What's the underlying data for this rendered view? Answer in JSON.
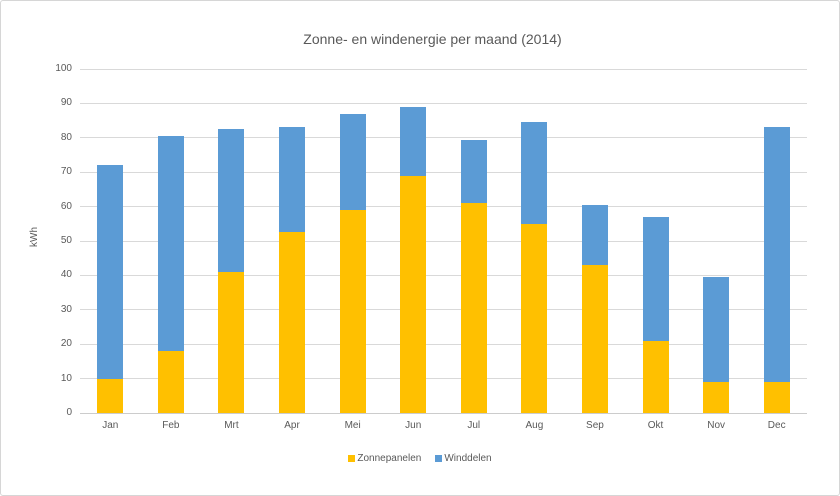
{
  "chart_data": {
    "type": "bar",
    "stacked": true,
    "title": "Zonne- en windenergie per maand (2014)",
    "xlabel": "",
    "ylabel": "kWh",
    "categories": [
      "Jan",
      "Feb",
      "Mrt",
      "Apr",
      "Mei",
      "Jun",
      "Jul",
      "Aug",
      "Sep",
      "Okt",
      "Nov",
      "Dec"
    ],
    "series": [
      {
        "name": "Zonnepanelen",
        "color": "#FFC000",
        "values": [
          10,
          18,
          41,
          52.5,
          59,
          69,
          61,
          55,
          43,
          21,
          9,
          9
        ]
      },
      {
        "name": "Winddelen",
        "color": "#5B9BD5",
        "values": [
          62,
          62.5,
          41.5,
          30.5,
          28,
          20,
          18.5,
          29.5,
          17.5,
          36,
          30.5,
          74
        ]
      }
    ],
    "totals": [
      72,
      80.5,
      82.5,
      83,
      87,
      89,
      79.5,
      84.5,
      60.5,
      57,
      39.5,
      83
    ],
    "ylim": [
      0,
      100
    ],
    "ytick_step": 10,
    "grid": true,
    "legend_position": "bottom",
    "colors": {
      "text": "#595959",
      "gridline": "#d9d9d9",
      "axis_line": "#cccccc",
      "background": "#ffffff",
      "frame_border": "#d6d6d6"
    }
  }
}
